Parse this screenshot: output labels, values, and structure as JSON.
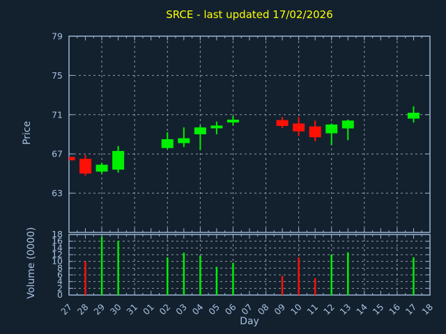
{
  "colors": {
    "background": "#13212f",
    "axis": "#9cb6d4",
    "text": "#a8c2e0",
    "grid": "#b2bac2",
    "title": "#ffff00",
    "up": "#00f000",
    "down": "#ff1005"
  },
  "chart_data": {
    "type": "candlestick",
    "title": "SRCE - last updated 17/02/2026",
    "grid": true,
    "price_axis": {
      "label": "Price",
      "ticks": [
        63,
        67,
        71,
        75,
        79
      ],
      "range": [
        59,
        79
      ]
    },
    "volume_axis": {
      "label": "Volume (0000)",
      "ticks": [
        0,
        2,
        4,
        6,
        8,
        10,
        12,
        14,
        16,
        18
      ],
      "range": [
        0,
        18
      ]
    },
    "x_axis": {
      "label": "Day",
      "tick_labels": [
        "27",
        "28",
        "29",
        "30",
        "31",
        "01",
        "02",
        "03",
        "04",
        "05",
        "06",
        "07",
        "08",
        "09",
        "10",
        "11",
        "12",
        "13",
        "14",
        "15",
        "16",
        "17",
        "18"
      ],
      "gridline_indices": [
        2,
        4,
        6,
        8,
        10,
        12,
        14,
        16,
        18,
        20
      ]
    },
    "candles": [
      {
        "i": 0,
        "day": "27",
        "open": 66.7,
        "high": 66.7,
        "low": 66.35,
        "close": 66.35,
        "volume": null
      },
      {
        "i": 1,
        "day": "28",
        "open": 66.5,
        "high": 66.9,
        "low": 64.8,
        "close": 65.0,
        "volume": 10.0
      },
      {
        "i": 2,
        "day": "29",
        "open": 65.2,
        "high": 66.1,
        "low": 65.0,
        "close": 65.9,
        "volume": 17.3
      },
      {
        "i": 3,
        "day": "30",
        "open": 65.4,
        "high": 67.8,
        "low": 65.1,
        "close": 67.3,
        "volume": 16.1
      },
      {
        "i": 6,
        "day": "02",
        "open": 67.6,
        "high": 69.2,
        "low": 67.5,
        "close": 68.5,
        "volume": 11.2
      },
      {
        "i": 7,
        "day": "03",
        "open": 68.1,
        "high": 69.7,
        "low": 67.7,
        "close": 68.6,
        "volume": 12.6
      },
      {
        "i": 8,
        "day": "04",
        "open": 69.0,
        "high": 69.9,
        "low": 67.4,
        "close": 69.7,
        "volume": 11.7
      },
      {
        "i": 9,
        "day": "05",
        "open": 69.75,
        "high": 70.3,
        "low": 69.0,
        "close": 69.75,
        "volume": 8.4
      },
      {
        "i": 10,
        "day": "06",
        "open": 70.35,
        "high": 70.85,
        "low": 69.9,
        "close": 70.35,
        "volume": 9.6
      },
      {
        "i": 13,
        "day": "09",
        "open": 70.45,
        "high": 70.75,
        "low": 69.65,
        "close": 69.85,
        "volume": 5.7
      },
      {
        "i": 14,
        "day": "10",
        "open": 70.1,
        "high": 70.75,
        "low": 68.8,
        "close": 69.3,
        "volume": 11.2
      },
      {
        "i": 15,
        "day": "11",
        "open": 69.8,
        "high": 70.4,
        "low": 68.3,
        "close": 68.7,
        "volume": 5.0
      },
      {
        "i": 16,
        "day": "12",
        "open": 69.1,
        "high": 70.1,
        "low": 67.9,
        "close": 70.0,
        "volume": 12.0
      },
      {
        "i": 17,
        "day": "13",
        "open": 69.6,
        "high": 70.5,
        "low": 68.4,
        "close": 70.4,
        "volume": 12.7
      },
      {
        "i": 21,
        "day": "17",
        "open": 70.6,
        "high": 71.85,
        "low": 70.2,
        "close": 71.2,
        "volume": 11.2
      }
    ]
  }
}
